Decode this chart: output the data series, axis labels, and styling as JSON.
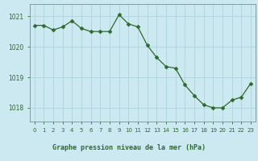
{
  "x": [
    0,
    1,
    2,
    3,
    4,
    5,
    6,
    7,
    8,
    9,
    10,
    11,
    12,
    13,
    14,
    15,
    16,
    17,
    18,
    19,
    20,
    21,
    22,
    23
  ],
  "y": [
    1020.7,
    1020.7,
    1020.55,
    1020.65,
    1020.85,
    1020.6,
    1020.5,
    1020.5,
    1020.5,
    1021.05,
    1020.75,
    1020.65,
    1020.05,
    1019.65,
    1019.35,
    1019.3,
    1018.75,
    1018.4,
    1018.1,
    1018.0,
    1018.0,
    1018.25,
    1018.35,
    1018.8
  ],
  "line_color": "#2d6a2d",
  "marker": "D",
  "marker_size": 2.5,
  "bg_color": "#cce8f0",
  "grid_color": "#aed4dc",
  "tick_color": "#2d6a2d",
  "xlabel": "Graphe pression niveau de la mer (hPa)",
  "xlabel_color": "#2d6a2d",
  "yticks": [
    1018,
    1019,
    1020,
    1021
  ],
  "ylim": [
    1017.55,
    1021.4
  ],
  "xlim": [
    -0.5,
    23.5
  ],
  "spine_color": "#888888",
  "bottom_bar_color": "#5a9a5a",
  "xtick_labels": [
    "0",
    "1",
    "2",
    "3",
    "4",
    "5",
    "6",
    "7",
    "8",
    "9",
    "10",
    "11",
    "12",
    "13",
    "14",
    "15",
    "16",
    "17",
    "18",
    "19",
    "20",
    "21",
    "22",
    "23"
  ]
}
